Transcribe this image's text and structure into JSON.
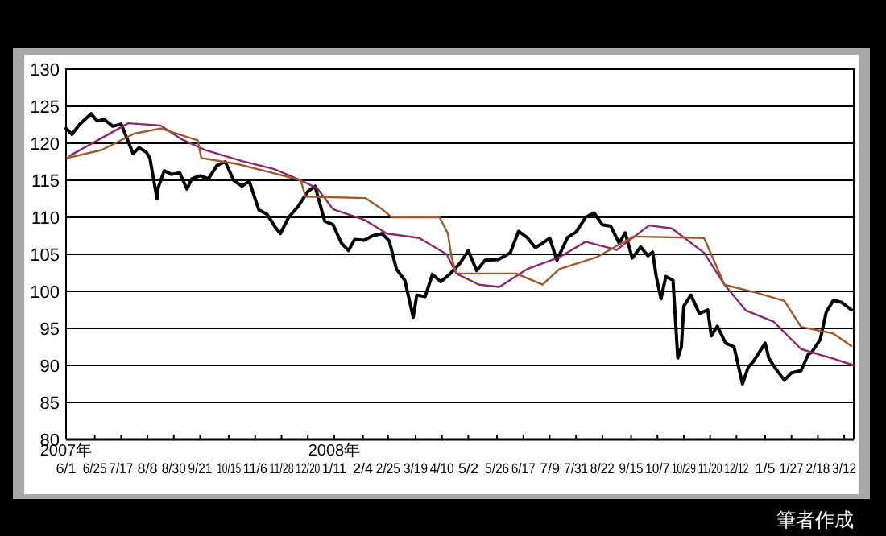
{
  "chart_data": {
    "type": "line",
    "xlim": [
      "2007-06-01",
      "2009-03-20"
    ],
    "ylim": [
      80,
      130
    ],
    "yticks": [
      80,
      85,
      90,
      95,
      100,
      105,
      110,
      115,
      120,
      125,
      130
    ],
    "grid": "y",
    "line_style": "solid",
    "marker": "none",
    "xticks": [
      {
        "value": "2007-06-01",
        "label": "2007年\n6/1"
      },
      {
        "value": "2007-06-25",
        "label": "6/25"
      },
      {
        "value": "2007-07-17",
        "label": "7/17"
      },
      {
        "value": "2007-08-08",
        "label": "8/8"
      },
      {
        "value": "2007-08-30",
        "label": "8/30"
      },
      {
        "value": "2007-09-21",
        "label": "9/21"
      },
      {
        "value": "2007-10-15",
        "label": "10/15"
      },
      {
        "value": "2007-11-06",
        "label": "11/6"
      },
      {
        "value": "2007-11-28",
        "label": "11/28"
      },
      {
        "value": "2007-12-20",
        "label": "12/20"
      },
      {
        "value": "2008-01-11",
        "label": "2008年\n1/11"
      },
      {
        "value": "2008-02-04",
        "label": "2/4"
      },
      {
        "value": "2008-02-25",
        "label": "2/25"
      },
      {
        "value": "2008-03-19",
        "label": "3/19"
      },
      {
        "value": "2008-04-10",
        "label": "4/10"
      },
      {
        "value": "2008-05-02",
        "label": "5/2"
      },
      {
        "value": "2008-05-26",
        "label": "5/26"
      },
      {
        "value": "2008-06-17",
        "label": "6/17"
      },
      {
        "value": "2008-07-09",
        "label": "7/9"
      },
      {
        "value": "2008-07-31",
        "label": "7/31"
      },
      {
        "value": "2008-08-22",
        "label": "8/22"
      },
      {
        "value": "2008-09-15",
        "label": "9/15"
      },
      {
        "value": "2008-10-07",
        "label": "10/7"
      },
      {
        "value": "2008-10-29",
        "label": "10/29"
      },
      {
        "value": "2008-11-20",
        "label": "11/20"
      },
      {
        "value": "2008-12-12",
        "label": "12/12"
      },
      {
        "value": "2009-01-05",
        "label": "1/5"
      },
      {
        "value": "2009-01-27",
        "label": "1/27"
      },
      {
        "value": "2009-02-18",
        "label": "2/18"
      },
      {
        "value": "2009-03-12",
        "label": "3/12"
      }
    ],
    "annotations": [
      "筆者作成"
    ],
    "series": [
      {
        "color": "#000000",
        "x": [
          "2007-06-01",
          "2007-06-06",
          "2007-06-12",
          "2007-06-22",
          "2007-06-27",
          "2007-07-03",
          "2007-07-10",
          "2007-07-17",
          "2007-07-24",
          "2007-07-27",
          "2007-08-01",
          "2007-08-07",
          "2007-08-10",
          "2007-08-16",
          "2007-08-17",
          "2007-08-22",
          "2007-08-28",
          "2007-09-04",
          "2007-09-10",
          "2007-09-14",
          "2007-09-21",
          "2007-09-28",
          "2007-10-05",
          "2007-10-12",
          "2007-10-19",
          "2007-10-26",
          "2007-11-01",
          "2007-11-09",
          "2007-11-16",
          "2007-11-23",
          "2007-11-27",
          "2007-12-04",
          "2007-12-12",
          "2007-12-20",
          "2007-12-26",
          "2008-01-03",
          "2008-01-10",
          "2008-01-17",
          "2008-01-23",
          "2008-01-28",
          "2008-02-05",
          "2008-02-12",
          "2008-02-20",
          "2008-02-26",
          "2008-03-03",
          "2008-03-10",
          "2008-03-17",
          "2008-03-20",
          "2008-03-27",
          "2008-04-02",
          "2008-04-09",
          "2008-04-17",
          "2008-04-25",
          "2008-05-02",
          "2008-05-09",
          "2008-05-16",
          "2008-05-27",
          "2008-06-06",
          "2008-06-13",
          "2008-06-20",
          "2008-06-27",
          "2008-07-03",
          "2008-07-09",
          "2008-07-15",
          "2008-07-24",
          "2008-07-31",
          "2008-08-08",
          "2008-08-15",
          "2008-08-22",
          "2008-08-29",
          "2008-09-05",
          "2008-09-10",
          "2008-09-16",
          "2008-09-23",
          "2008-09-29",
          "2008-10-03",
          "2008-10-06",
          "2008-10-10",
          "2008-10-14",
          "2008-10-20",
          "2008-10-24",
          "2008-10-27",
          "2008-10-29",
          "2008-11-04",
          "2008-11-11",
          "2008-11-18",
          "2008-11-21",
          "2008-11-26",
          "2008-12-03",
          "2008-12-10",
          "2008-12-17",
          "2008-12-22",
          "2008-12-26",
          "2009-01-05",
          "2009-01-08",
          "2009-01-14",
          "2009-01-21",
          "2009-01-27",
          "2009-02-04",
          "2009-02-10",
          "2009-02-13",
          "2009-02-20",
          "2009-02-25",
          "2009-03-03",
          "2009-03-10",
          "2009-03-18"
        ],
        "values": [
          122.0,
          121.2,
          122.5,
          124.0,
          123.0,
          123.2,
          122.3,
          122.6,
          119.8,
          118.6,
          119.4,
          118.8,
          118.0,
          112.5,
          114.0,
          116.3,
          115.8,
          116.0,
          113.8,
          115.2,
          115.6,
          115.2,
          117.0,
          117.5,
          115.0,
          114.2,
          114.9,
          111.0,
          110.4,
          108.6,
          107.8,
          110.0,
          111.5,
          113.5,
          114.2,
          109.5,
          109.0,
          106.5,
          105.5,
          107.0,
          106.9,
          107.5,
          107.8,
          106.8,
          103.0,
          101.5,
          96.5,
          99.5,
          99.3,
          102.3,
          101.3,
          102.4,
          103.8,
          105.5,
          102.8,
          104.2,
          104.3,
          105.2,
          108.1,
          107.3,
          105.9,
          106.5,
          107.2,
          104.2,
          107.3,
          108.0,
          110.0,
          110.6,
          109.0,
          108.8,
          106.5,
          107.9,
          104.5,
          106.0,
          104.8,
          105.3,
          102.0,
          99.0,
          102.0,
          101.5,
          91.0,
          92.5,
          98.0,
          99.5,
          97.0,
          97.5,
          94.0,
          95.3,
          93.0,
          92.5,
          87.5,
          89.8,
          90.5,
          93.0,
          91.0,
          89.5,
          88.0,
          89.0,
          89.3,
          91.5,
          91.8,
          93.5,
          97.2,
          98.8,
          98.5,
          97.5
        ]
      },
      {
        "color": "#8b2a6b",
        "x": [
          "2007-06-04",
          "2007-07-23",
          "2007-08-19",
          "2007-09-06",
          "2007-09-25",
          "2007-10-26",
          "2007-11-22",
          "2007-12-14",
          "2007-12-28",
          "2008-01-10",
          "2008-02-06",
          "2008-02-24",
          "2008-03-22",
          "2008-04-14",
          "2008-04-22",
          "2008-05-11",
          "2008-05-28",
          "2008-06-20",
          "2008-07-17",
          "2008-08-08",
          "2008-09-03",
          "2008-09-30",
          "2008-10-19",
          "2008-11-15",
          "2008-12-02",
          "2008-12-20",
          "2009-01-12",
          "2009-02-04",
          "2009-03-03",
          "2009-03-20"
        ],
        "values": [
          118.3,
          122.7,
          122.4,
          120.5,
          119.1,
          117.6,
          116.5,
          115.0,
          113.9,
          111.1,
          109.6,
          107.8,
          107.2,
          105.0,
          102.4,
          100.9,
          100.6,
          103.0,
          104.6,
          106.7,
          105.6,
          108.9,
          108.5,
          105.2,
          100.9,
          97.4,
          95.9,
          92.2,
          90.9,
          90.0
        ]
      },
      {
        "color": "#9c5a2a",
        "x": [
          "2007-06-02",
          "2007-07-01",
          "2007-07-28",
          "2007-08-19",
          "2007-09-19",
          "2007-09-22",
          "2007-10-22",
          "2007-11-18",
          "2007-12-14",
          "2007-12-18",
          "2008-02-06",
          "2008-02-20",
          "2008-02-28",
          "2008-04-08",
          "2008-04-15",
          "2008-04-18",
          "2008-04-22",
          "2008-06-11",
          "2008-07-03",
          "2008-07-17",
          "2008-08-17",
          "2008-09-17",
          "2008-11-15",
          "2008-12-02",
          "2008-12-29",
          "2009-01-21",
          "2009-02-04",
          "2009-03-03",
          "2009-03-18"
        ],
        "values": [
          118.0,
          119.1,
          121.3,
          122.0,
          120.4,
          118.0,
          117.2,
          116.1,
          115.0,
          112.8,
          112.6,
          111.1,
          110.0,
          110.0,
          107.8,
          104.6,
          102.4,
          102.4,
          100.9,
          103.0,
          104.6,
          107.4,
          107.2,
          100.9,
          99.8,
          98.7,
          95.2,
          94.3,
          92.6
        ]
      }
    ]
  }
}
